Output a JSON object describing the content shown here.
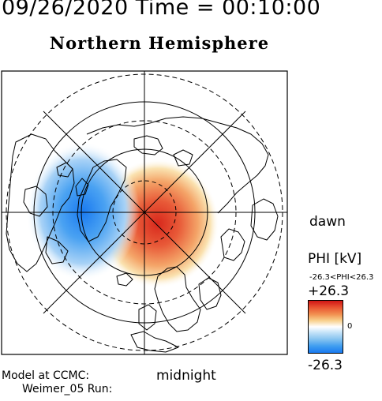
{
  "header": {
    "datetime": "09/26/2020 Time = 00:10:00"
  },
  "title": "Northern Hemisphere",
  "map": {
    "type": "polar-projection",
    "hemisphere": "north",
    "labels": {
      "dawn": "dawn",
      "midnight": "midnight"
    },
    "potential_cells": [
      {
        "sign": "positive",
        "color": "#e0301e"
      },
      {
        "sign": "negative",
        "color": "#1a7af0"
      }
    ]
  },
  "legend": {
    "title": "PHI [kV]",
    "range_text": "-26.3<PHI<26.3",
    "max_label": "+26.3",
    "zero_label": "0",
    "min_label": "-26.3",
    "colors": [
      "#d01515",
      "#f29050",
      "#ffffff",
      "#86c3f0",
      "#1a7af0"
    ]
  },
  "footer": {
    "model_line": "Model at CCMC:",
    "run_line": "Weimer_05 Run:"
  }
}
